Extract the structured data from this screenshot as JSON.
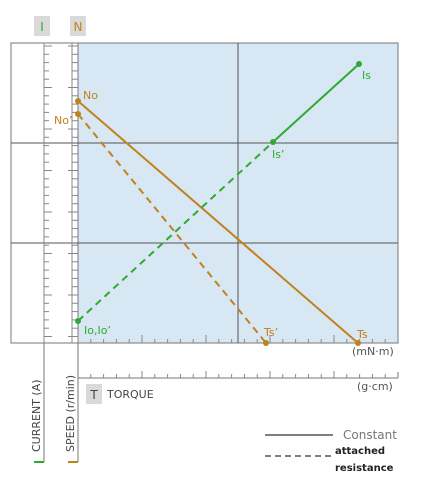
{
  "chart_data": {
    "type": "line",
    "header_tags": {
      "current": "I",
      "speed": "N"
    },
    "axis_titles": {
      "current": "CURRENT (A)",
      "speed": "SPEED (r/min)",
      "torque_box": "T",
      "torque": "TORQUE"
    },
    "units": {
      "torque_si": "(mN·m)",
      "torque_cgs": "(g·cm)"
    },
    "x_relative": [
      0,
      1
    ],
    "series": [
      {
        "name": "Constant",
        "kind": "speed",
        "style": "solid",
        "color": "#c0821b",
        "labels": [
          "No",
          "Ts"
        ],
        "y_relative": [
          0.83,
          0
        ]
      },
      {
        "name": "attached resistance",
        "kind": "speed",
        "style": "dashed",
        "color": "#c0821b",
        "labels": [
          "No’",
          "Ts’"
        ],
        "y_relative": [
          0.76,
          0
        ],
        "x_end_relative": 0.59
      },
      {
        "name": "Constant",
        "kind": "current",
        "style": "solid",
        "color": "#2eaa2e",
        "labels": [
          "Is’",
          "Is"
        ],
        "x_relative": [
          0.62,
          0.88
        ],
        "y_relative": [
          0.66,
          0.92
        ]
      },
      {
        "name": "attached resistance",
        "kind": "current",
        "style": "dashed",
        "color": "#2eaa2e",
        "labels": [
          "Io,Io’",
          "Is’"
        ],
        "x_relative": [
          0,
          0.62
        ],
        "y_relative": [
          0.07,
          0.66
        ]
      }
    ],
    "legend": [
      {
        "style": "solid",
        "label": "Constant"
      },
      {
        "style": "dashed",
        "label_line1": "attached",
        "label_line2": "resistance"
      }
    ],
    "colors": {
      "plot_bg": "#d8e7f4",
      "speed": "#c0821b",
      "current": "#2eaa2e",
      "tag_bg": "#d9d9d9"
    },
    "grid": true
  }
}
